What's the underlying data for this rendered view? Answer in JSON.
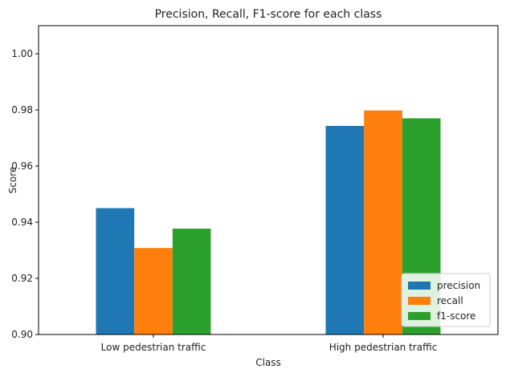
{
  "chart_data": {
    "type": "bar",
    "title": "Precision, Recall, F1-score for each class",
    "xlabel": "Class",
    "ylabel": "Score",
    "categories": [
      "Low pedestrian traffic",
      "High pedestrian traffic"
    ],
    "series": [
      {
        "name": "precision",
        "values": [
          0.945,
          0.9743
        ],
        "color": "#1f77b4"
      },
      {
        "name": "recall",
        "values": [
          0.9308,
          0.9798
        ],
        "color": "#ff7f0e"
      },
      {
        "name": "f1-score",
        "values": [
          0.9377,
          0.977
        ],
        "color": "#2ca02c"
      }
    ],
    "ylim": [
      0.9,
      1.01
    ],
    "yticks": [
      "0.90",
      "0.92",
      "0.94",
      "0.96",
      "0.98",
      "1.00"
    ],
    "grid": false,
    "legend_position": "bottom-right"
  }
}
